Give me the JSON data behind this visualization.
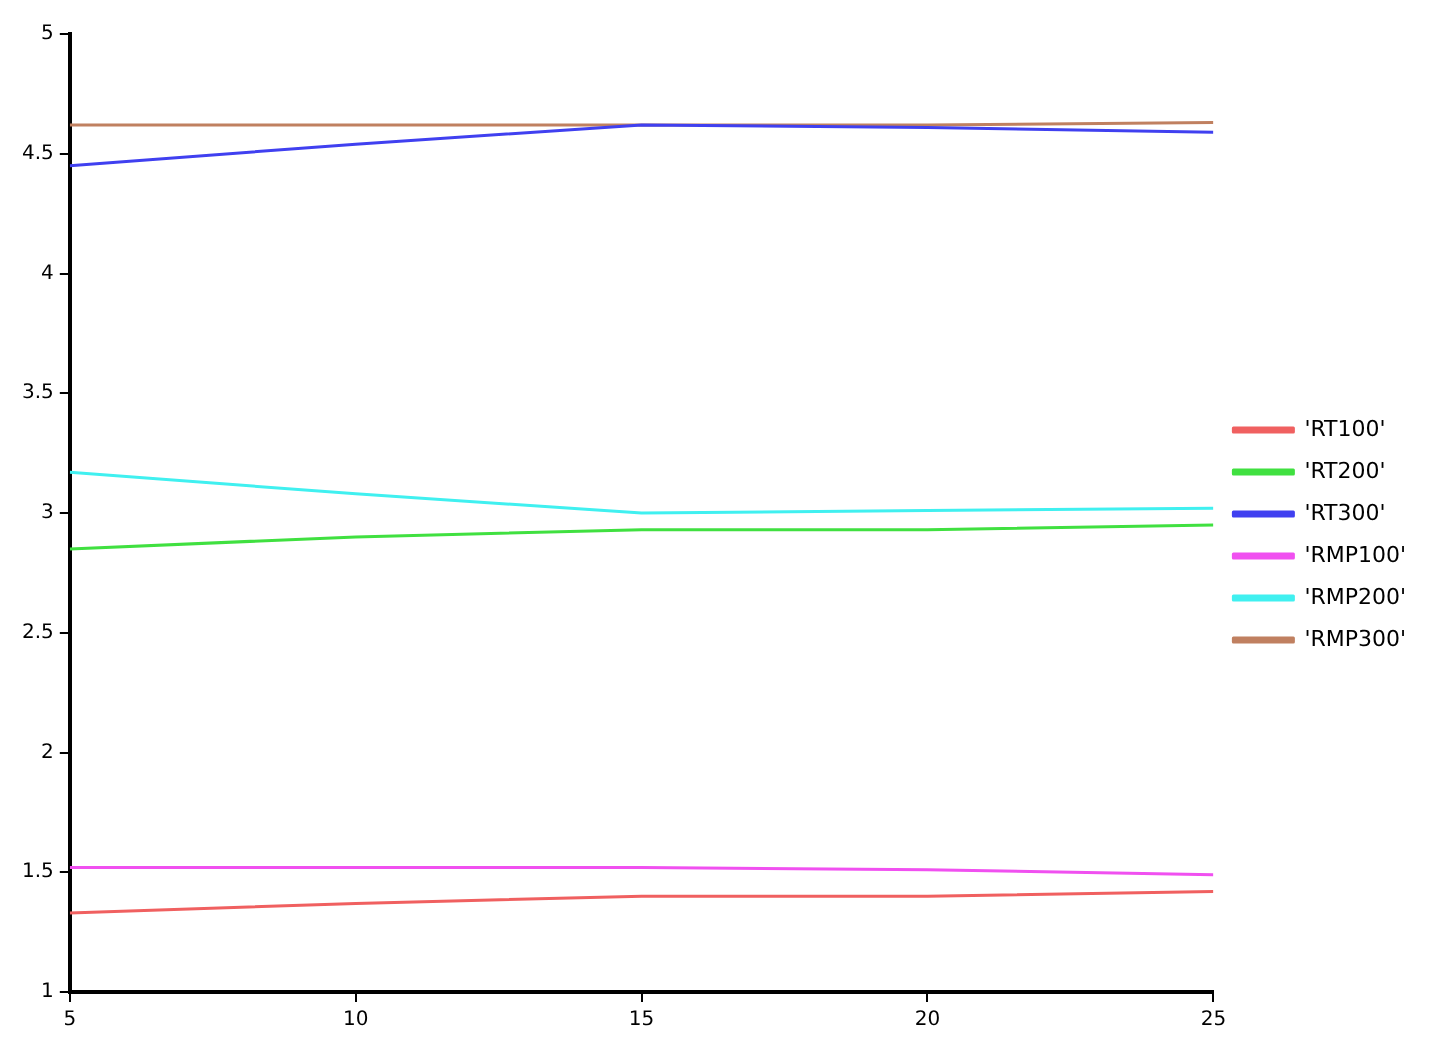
{
  "chart_data": {
    "type": "line",
    "x": [
      5,
      10,
      15,
      20,
      25
    ],
    "xlim": [
      5,
      25
    ],
    "xticks": [
      5,
      10,
      15,
      20,
      25
    ],
    "ylim": [
      1,
      5
    ],
    "yticks": [
      1,
      1.5,
      2,
      2.5,
      3,
      3.5,
      4,
      4.5,
      5
    ],
    "grid": false,
    "legend": "right",
    "marker": "none",
    "line_style": "solid",
    "series": [
      {
        "name": "'RT100'",
        "color": "#f06060",
        "values": [
          1.33,
          1.37,
          1.4,
          1.4,
          1.42
        ]
      },
      {
        "name": "'RT200'",
        "color": "#40e040",
        "values": [
          2.85,
          2.9,
          2.93,
          2.93,
          2.95
        ]
      },
      {
        "name": "'RT300'",
        "color": "#4040f0",
        "values": [
          4.45,
          4.54,
          4.62,
          4.61,
          4.59
        ]
      },
      {
        "name": "'RMP100'",
        "color": "#f050f0",
        "values": [
          1.52,
          1.52,
          1.52,
          1.51,
          1.49
        ]
      },
      {
        "name": "'RMP200'",
        "color": "#40f0f0",
        "values": [
          3.17,
          3.08,
          3,
          3.01,
          3.02
        ]
      },
      {
        "name": "'RMP300'",
        "color": "#c08060",
        "values": [
          4.62,
          4.62,
          4.62,
          4.62,
          4.63
        ]
      }
    ]
  }
}
